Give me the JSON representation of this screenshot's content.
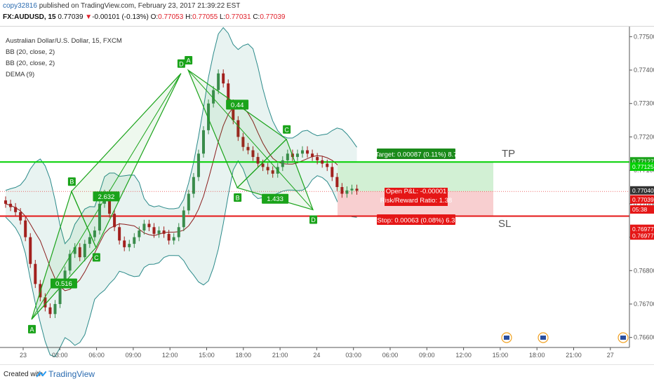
{
  "header": {
    "user": "copy32816",
    "published": " published on TradingView.com, February 23, 2017 21:39:22 EST",
    "symbol": "FX:AUDUSD, 15",
    "last": "0.77039",
    "arrow": "▼",
    "change": "-0.00101 (-0.13%)",
    "o_label": "O:",
    "o": "0.77053",
    "h_label": "H:",
    "h": "0.77055",
    "l_label": "L:",
    "l": "0.77031",
    "c_label": "C:",
    "c": "0.77039"
  },
  "legend": {
    "title": "Australian Dollar/U.S. Dollar, 15, FXCM",
    "bb1": "BB (20, close, 2)",
    "bb2": "BB (20, close, 2)",
    "dema": "DEMA (9)"
  },
  "footer": {
    "created_with": "Created with",
    "brand": "TradingView"
  },
  "colors": {
    "up": "#3a8c4c",
    "down": "#a2201e",
    "pattern": "#1aa31a",
    "bb_band": "#2b8a8a",
    "bb_fill": "#e5f2ef",
    "ma": "#8a1c1c",
    "tp": "#00d000",
    "sl": "#e51616",
    "target_zone": "#d2f0d4",
    "stop_zone": "#f8cfd0"
  },
  "chart_data": {
    "type": "candlestick",
    "title": "Australian Dollar/U.S. Dollar, 15, FXCM",
    "y_ticks": [
      "0.77500",
      "0.77400",
      "0.77300",
      "0.77200",
      "0.77100",
      "0.77000",
      "0.76900",
      "0.76800",
      "0.76700",
      "0.76600"
    ],
    "x_ticks": [
      "23",
      "03:00",
      "06:00",
      "09:00",
      "12:00",
      "15:00",
      "18:00",
      "21:00",
      "24",
      "03:00",
      "06:00",
      "09:00",
      "12:00",
      "15:00",
      "18:00",
      "21:00",
      "27"
    ],
    "ylim": [
      0.7657,
      0.7753
    ],
    "price_labels": [
      {
        "text": "0.77127",
        "price": 0.77127,
        "color": "#1aa31a"
      },
      {
        "text": "0.77125",
        "price": 0.77111,
        "color": "#00d000"
      },
      {
        "text": "0.77040",
        "price": 0.7704,
        "color": "#333333"
      },
      {
        "text": "0.77039",
        "price": 0.77013,
        "color": "#e51616"
      },
      {
        "text": "05:38",
        "price": 0.76983,
        "color": "#e51616"
      },
      {
        "text": "0.76977",
        "price": 0.76925,
        "color": "#e51616"
      },
      {
        "text": "0.76977",
        "price": 0.76905,
        "color": "#e51616"
      }
    ],
    "tp_price": 0.77125,
    "sl_price": 0.76963,
    "entry_price": 0.77037,
    "pattern_points": [
      {
        "label": "A",
        "x": "23 02:00",
        "price": 0.76654
      },
      {
        "label": "B",
        "x": "23 05:15",
        "price": 0.77037
      },
      {
        "label": "C",
        "x": "23 07:15",
        "price": 0.76869
      },
      {
        "label": "D",
        "x": "23 14:10",
        "price": 0.7739
      },
      {
        "label": "A",
        "x": "23 14:45",
        "price": 0.774
      },
      {
        "label": "B",
        "x": "23 18:45",
        "price": 0.77048
      },
      {
        "label": "C",
        "x": "23 22:45",
        "price": 0.77193
      },
      {
        "label": "D",
        "x": "24 00:55",
        "price": 0.76982
      }
    ],
    "ratio_labels": [
      {
        "text": "2.632"
      },
      {
        "text": "0.516"
      },
      {
        "text": "0.44"
      },
      {
        "text": "1.433"
      }
    ],
    "position": {
      "target": "Target: 0.00087 (0.11%) 8.7",
      "open_pl": "Open P&L: -0.00001",
      "rr": "Risk/Reward Ratio: 1.38",
      "stop": "Stop: 0.00063 (0.08%) 6.3"
    },
    "annotations": {
      "tp": "TP",
      "sl": "SL"
    },
    "closes": [
      0.77,
      0.7699,
      0.76975,
      0.7695,
      0.769,
      0.7682,
      0.7676,
      0.7672,
      0.7669,
      0.7667,
      0.767,
      0.7676,
      0.768,
      0.7685,
      0.7687,
      0.7684,
      0.7688,
      0.769,
      0.7692,
      0.77,
      0.7703,
      0.7697,
      0.7693,
      0.7689,
      0.7687,
      0.7688,
      0.769,
      0.7692,
      0.7694,
      0.7693,
      0.7691,
      0.7692,
      0.7691,
      0.7689,
      0.769,
      0.7693,
      0.7698,
      0.7703,
      0.7708,
      0.7715,
      0.7722,
      0.773,
      0.7734,
      0.7739,
      0.7736,
      0.773,
      0.7725,
      0.772,
      0.7717,
      0.7716,
      0.7714,
      0.7712,
      0.7711,
      0.771,
      0.7709,
      0.7711,
      0.7713,
      0.7715,
      0.7714,
      0.7715,
      0.7716,
      0.7715,
      0.7714,
      0.7713,
      0.7712,
      0.7711,
      0.7708,
      0.7705,
      0.7703,
      0.7704,
      0.77045,
      0.77039
    ]
  }
}
